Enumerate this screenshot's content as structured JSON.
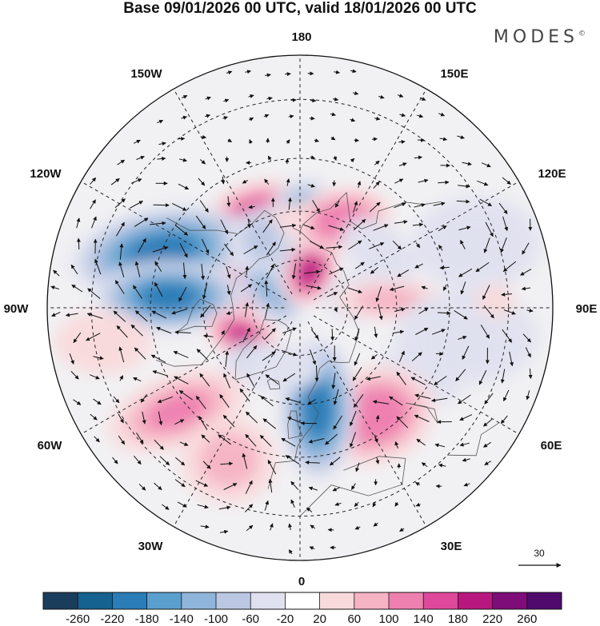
{
  "header": {
    "title": "Base 09/01/2026 00 UTC, valid 18/01/2026 00 UTC",
    "brand": "MODES",
    "brand_mark": "©"
  },
  "map": {
    "projection": "north polar stereographic",
    "longitude_labels": {
      "top": "180",
      "bottom": "0",
      "left": "90W",
      "right": "90E",
      "upper_left_1": "150W",
      "upper_left_2": "120W",
      "lower_left_1": "60W",
      "lower_left_2": "30W",
      "upper_right_1": "150E",
      "upper_right_2": "120E",
      "lower_right_1": "60E",
      "lower_right_2": "30E"
    },
    "wind_reference_label": "30"
  },
  "colorbar": {
    "tick_labels": [
      "-260",
      "-220",
      "-180",
      "-140",
      "-100",
      "-60",
      "-20",
      "20",
      "60",
      "100",
      "140",
      "180",
      "220",
      "260"
    ],
    "colors": [
      "#1a3d5c",
      "#15618f",
      "#2a7db7",
      "#5b9fcf",
      "#8fb5da",
      "#bcc8e3",
      "#e0e1ef",
      "#ffffff",
      "#f9dadc",
      "#f5b3c4",
      "#ee80b0",
      "#e0489c",
      "#b8177f",
      "#7e0c79",
      "#4f0a6c"
    ]
  },
  "anomalies": [
    {
      "lon": -151,
      "lat": 62,
      "value": 230,
      "rx": 78,
      "ry": 58,
      "rot": -25
    },
    {
      "lon": -120,
      "lat": 73,
      "value": 200,
      "rx": 55,
      "ry": 40,
      "rot": -40
    },
    {
      "lon": -112,
      "lat": 45,
      "value": -210,
      "rx": 115,
      "ry": 55,
      "rot": -10
    },
    {
      "lon": -95,
      "lat": 50,
      "value": -200,
      "rx": 95,
      "ry": 45,
      "rot": 0
    },
    {
      "lon": -130,
      "lat": 78,
      "value": -120,
      "rx": 60,
      "ry": 35,
      "rot": 60
    },
    {
      "lon": -165,
      "lat": 68,
      "value": -70,
      "rx": 70,
      "ry": 45,
      "rot": 0
    },
    {
      "lon": -170,
      "lat": 77,
      "value": -90,
      "rx": 25,
      "ry": 40,
      "rot": 0
    },
    {
      "lon": 165,
      "lat": 78,
      "value": 200,
      "rx": 32,
      "ry": 45,
      "rot": 25
    },
    {
      "lon": 177,
      "lat": 60,
      "value": -110,
      "rx": 42,
      "ry": 40,
      "rot": 0
    },
    {
      "lon": 155,
      "lat": 60,
      "value": 130,
      "rx": 65,
      "ry": 40,
      "rot": -10
    },
    {
      "lon": -175,
      "lat": 62,
      "value": 50,
      "rx": 25,
      "ry": 18,
      "rot": 0
    },
    {
      "lon": 125,
      "lat": 60,
      "value": -60,
      "rx": 55,
      "ry": 35,
      "rot": 40
    },
    {
      "lon": 100,
      "lat": 72,
      "value": -50,
      "rx": 40,
      "ry": 30,
      "rot": 0
    },
    {
      "lon": 95,
      "lat": 62,
      "value": 60,
      "rx": 70,
      "ry": 25,
      "rot": 0
    },
    {
      "lon": 60,
      "lat": 48,
      "value": -40,
      "rx": 55,
      "ry": 30,
      "rot": 20
    },
    {
      "lon": 35,
      "lat": 50,
      "value": 120,
      "rx": 75,
      "ry": 60,
      "rot": -20
    },
    {
      "lon": 10,
      "lat": 58,
      "value": -200,
      "rx": 48,
      "ry": 90,
      "rot": 0
    },
    {
      "lon": -65,
      "lat": 70,
      "value": 180,
      "rx": 48,
      "ry": 30,
      "rot": 20
    },
    {
      "lon": -38,
      "lat": 68,
      "value": -110,
      "rx": 40,
      "ry": 28,
      "rot": 0
    },
    {
      "lon": -50,
      "lat": 42,
      "value": 100,
      "rx": 90,
      "ry": 45,
      "rot": -20
    },
    {
      "lon": -25,
      "lat": 40,
      "value": 60,
      "rx": 60,
      "ry": 55,
      "rot": 0
    },
    {
      "lon": -80,
      "lat": 32,
      "value": 40,
      "rx": 60,
      "ry": 40,
      "rot": 0
    },
    {
      "lon": -20,
      "lat": 70,
      "value": -40,
      "rx": 55,
      "ry": 30,
      "rot": 0
    },
    {
      "lon": 80,
      "lat": 40,
      "value": -30,
      "rx": 90,
      "ry": 60,
      "rot": 0
    },
    {
      "lon": 110,
      "lat": 35,
      "value": -30,
      "rx": 80,
      "ry": 60,
      "rot": 0
    },
    {
      "lon": 92,
      "lat": 33,
      "value": 50,
      "rx": 25,
      "ry": 20,
      "rot": 0
    }
  ]
}
